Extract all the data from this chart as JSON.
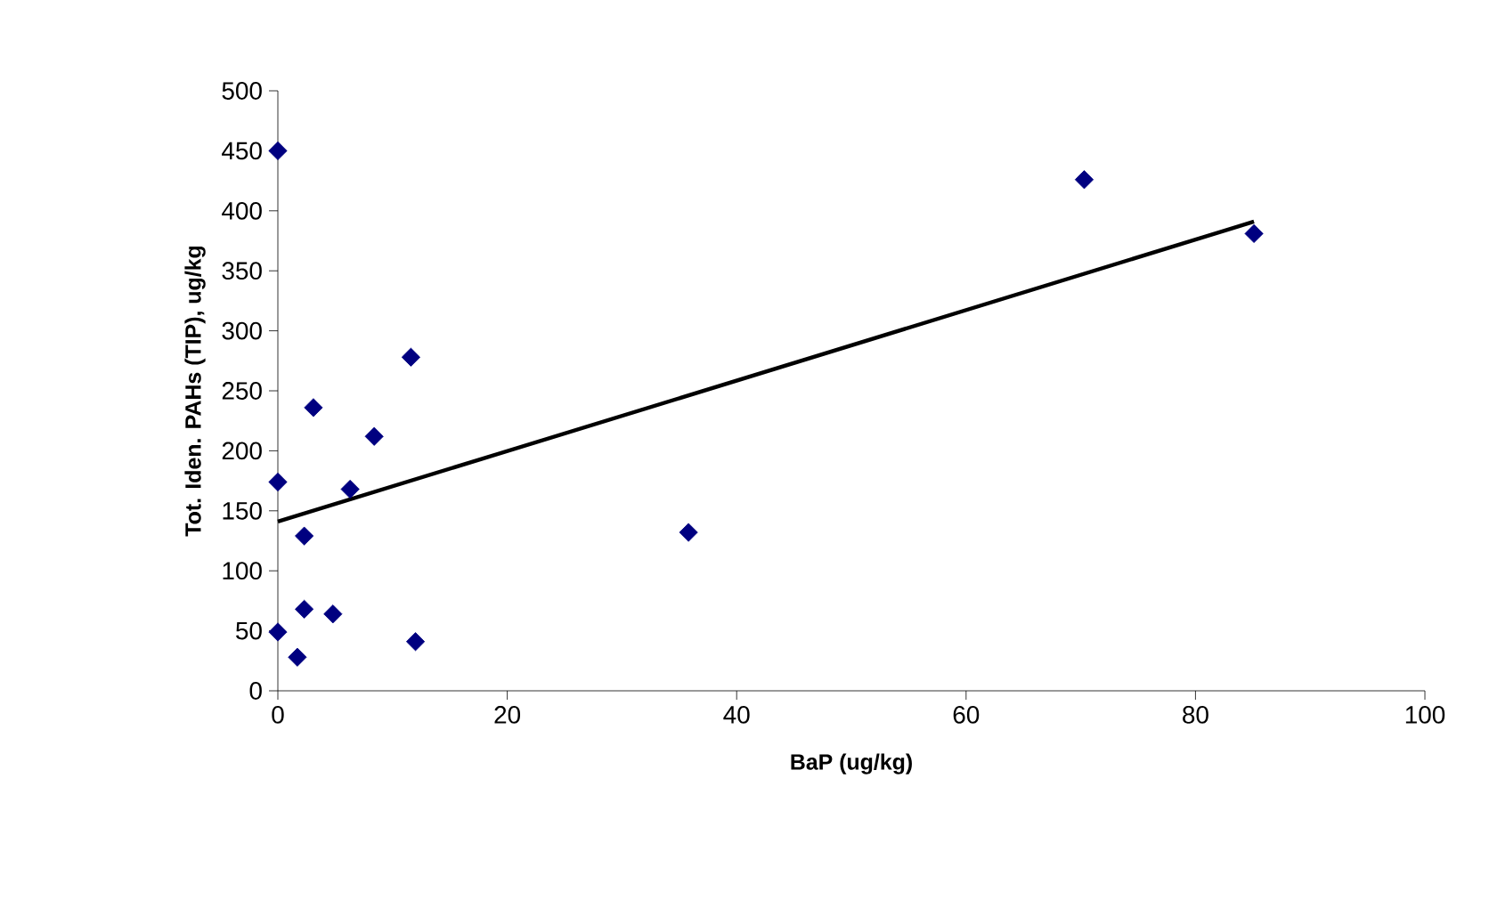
{
  "chart_data": {
    "type": "scatter",
    "xlabel": "BaP (ug/kg)",
    "ylabel": "Tot. Iden. PAHs (TIP), ug/kg",
    "xlim": [
      0,
      100
    ],
    "xticks": [
      0,
      20,
      40,
      60,
      80,
      100
    ],
    "ylim": [
      0,
      500
    ],
    "yticks": [
      0,
      50,
      100,
      150,
      200,
      250,
      300,
      350,
      400,
      450,
      500
    ],
    "marker": "diamond",
    "series": [
      {
        "color": "#000080",
        "x": [
          0,
          0,
          0,
          1.7,
          2.3,
          4.8,
          2.3,
          3.1,
          6.3,
          8.4,
          11.6,
          12.0,
          35.8,
          70.3,
          85.1
        ],
        "values": [
          450,
          174,
          49,
          28,
          68,
          64,
          129,
          236,
          168,
          212,
          278,
          41,
          132,
          426,
          381
        ]
      },
      {
        "type": "line",
        "marker": "none",
        "color": "#000000",
        "x": [
          0,
          85.1
        ],
        "values": [
          141,
          391
        ]
      }
    ]
  }
}
